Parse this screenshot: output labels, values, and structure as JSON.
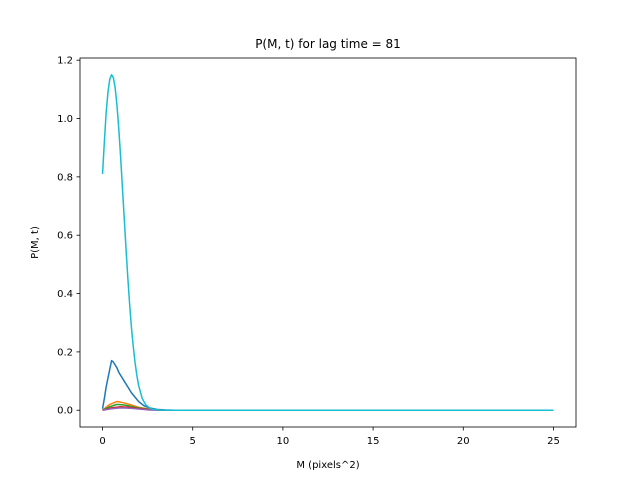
{
  "chart_data": {
    "type": "line",
    "title": "P(M, t) for lag time = 81",
    "xlabel": "M (pixels^2)",
    "ylabel": "P(M, t)",
    "xlim": [
      -1.25,
      26.25
    ],
    "ylim": [
      -0.0575,
      1.2075
    ],
    "xticks": [
      0,
      5,
      10,
      15,
      20,
      25
    ],
    "yticks": [
      0.0,
      0.2,
      0.4,
      0.6,
      0.8,
      1.0,
      1.2
    ],
    "xtick_labels": [
      "0",
      "5",
      "10",
      "15",
      "20",
      "25"
    ],
    "ytick_labels": [
      "0.0",
      "0.2",
      "0.4",
      "0.6",
      "0.8",
      "1.0",
      "1.2"
    ],
    "grid": false,
    "legend": "none",
    "series": [
      {
        "color": "#1f77b4",
        "x": [
          0,
          0.1,
          0.2,
          0.3,
          0.4,
          0.5,
          0.6,
          0.7,
          0.8,
          0.9,
          1.0,
          1.2,
          1.4,
          1.6,
          1.8,
          2.0,
          2.3,
          2.6,
          3.0,
          3.5,
          4.0,
          25
        ],
        "y": [
          0.005,
          0.04,
          0.08,
          0.11,
          0.14,
          0.17,
          0.165,
          0.155,
          0.145,
          0.13,
          0.12,
          0.1,
          0.08,
          0.06,
          0.045,
          0.03,
          0.015,
          0.008,
          0.003,
          0.001,
          0.0,
          0.0
        ]
      },
      {
        "color": "#ff7f0e",
        "x": [
          0,
          0.4,
          0.8,
          1.2,
          1.6,
          2.0,
          2.6,
          3.2,
          25
        ],
        "y": [
          0.0,
          0.02,
          0.03,
          0.025,
          0.018,
          0.01,
          0.004,
          0.0,
          0.0
        ]
      },
      {
        "color": "#2ca02c",
        "x": [
          0,
          0.4,
          0.8,
          1.2,
          1.6,
          2.0,
          2.6,
          3.2,
          25
        ],
        "y": [
          0.0,
          0.012,
          0.02,
          0.018,
          0.013,
          0.008,
          0.003,
          0.0,
          0.0
        ]
      },
      {
        "color": "#d62728",
        "x": [
          0,
          0.5,
          1.0,
          1.5,
          2.0,
          2.6,
          3.2,
          25
        ],
        "y": [
          0.0,
          0.008,
          0.012,
          0.01,
          0.006,
          0.002,
          0.0,
          0.0
        ]
      },
      {
        "color": "#9467bd",
        "x": [
          0,
          0.5,
          1.0,
          1.5,
          2.0,
          2.6,
          3.2,
          25
        ],
        "y": [
          0.0,
          0.005,
          0.008,
          0.007,
          0.004,
          0.001,
          0.0,
          0.0
        ]
      },
      {
        "color": "#17becf",
        "x": [
          0,
          0.1,
          0.2,
          0.3,
          0.4,
          0.5,
          0.6,
          0.7,
          0.8,
          0.9,
          1.0,
          1.1,
          1.2,
          1.3,
          1.4,
          1.5,
          1.6,
          1.7,
          1.8,
          1.9,
          2.0,
          2.2,
          2.4,
          2.6,
          2.8,
          3.0,
          3.3,
          3.6,
          4.0,
          4.5,
          5.0,
          25
        ],
        "y": [
          0.81,
          0.92,
          1.02,
          1.09,
          1.135,
          1.15,
          1.14,
          1.105,
          1.045,
          0.965,
          0.87,
          0.765,
          0.66,
          0.555,
          0.455,
          0.365,
          0.285,
          0.22,
          0.165,
          0.12,
          0.085,
          0.04,
          0.018,
          0.008,
          0.003,
          0.0015,
          0.0005,
          0.0002,
          0.0,
          0.0,
          0.0,
          0.0
        ]
      }
    ]
  }
}
